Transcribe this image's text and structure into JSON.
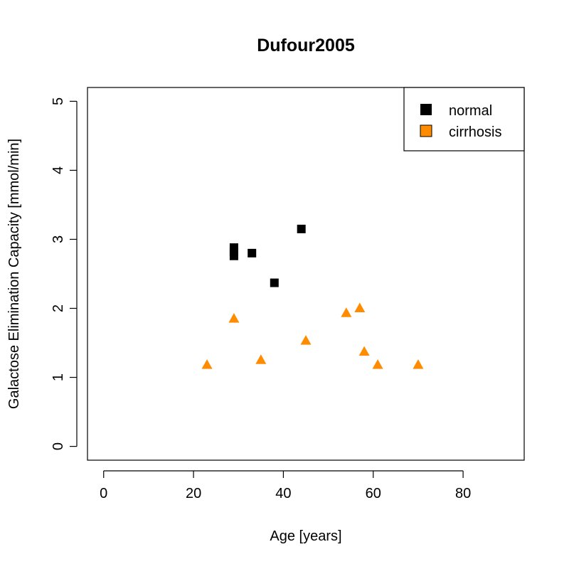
{
  "chart_data": {
    "type": "scatter",
    "title": "Dufour2005",
    "xlabel": "Age [years]",
    "ylabel": "Galactose Elimination Capacity [mmol/min]",
    "xlim": [
      -3.6,
      93.6
    ],
    "ylim": [
      -0.2,
      5.2
    ],
    "xticks": [
      0,
      20,
      40,
      60,
      80
    ],
    "yticks": [
      0,
      1,
      2,
      3,
      4,
      5
    ],
    "grid": false,
    "legend_position": "top-right",
    "series": [
      {
        "name": "normal",
        "marker": "square",
        "color": "#000000",
        "points": [
          {
            "x": 29,
            "y": 2.88
          },
          {
            "x": 29,
            "y": 2.82
          },
          {
            "x": 29,
            "y": 2.76
          },
          {
            "x": 33,
            "y": 2.8
          },
          {
            "x": 38,
            "y": 2.37
          },
          {
            "x": 44,
            "y": 3.15
          }
        ]
      },
      {
        "name": "cirrhosis",
        "marker": "triangle",
        "color": "#FF8C00",
        "points": [
          {
            "x": 23,
            "y": 1.18
          },
          {
            "x": 29,
            "y": 1.85
          },
          {
            "x": 35,
            "y": 1.25
          },
          {
            "x": 45,
            "y": 1.53
          },
          {
            "x": 54,
            "y": 1.93
          },
          {
            "x": 57,
            "y": 2.0
          },
          {
            "x": 58,
            "y": 1.37
          },
          {
            "x": 61,
            "y": 1.18
          },
          {
            "x": 70,
            "y": 1.18
          }
        ]
      }
    ]
  }
}
